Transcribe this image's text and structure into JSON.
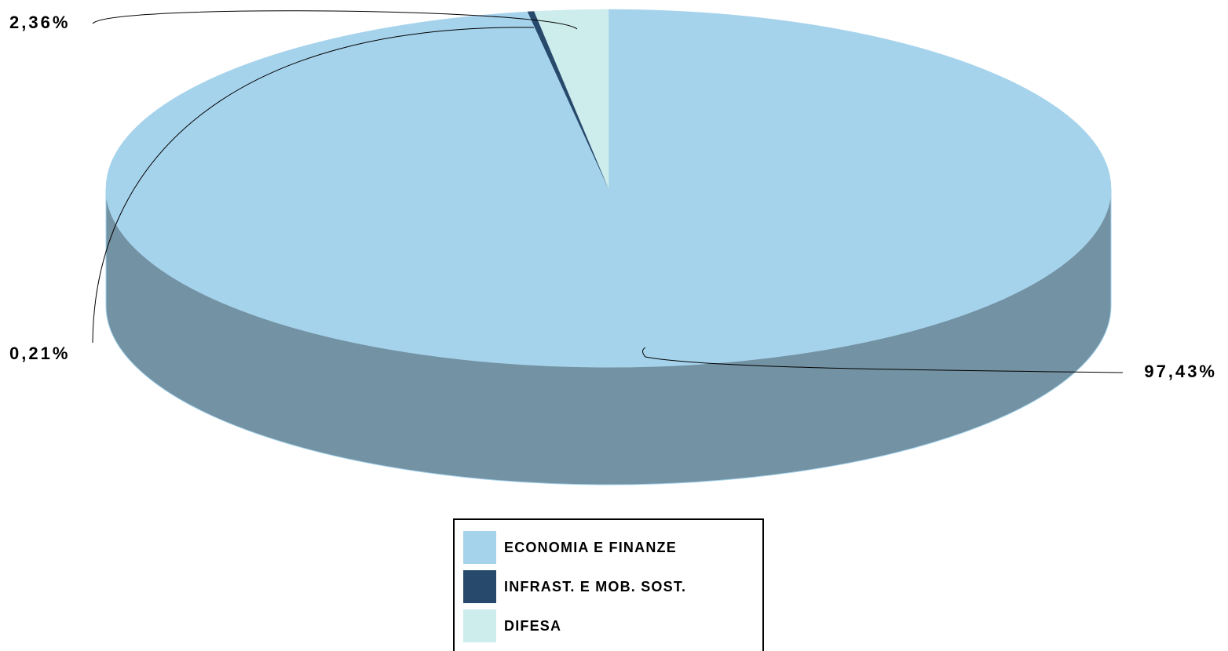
{
  "chart_data": {
    "type": "pie3d",
    "categories": [
      "ECONOMIA E FINANZE",
      "INFRAST. E MOB. SOST.",
      "DIFESA"
    ],
    "values": [
      97.43,
      0.21,
      2.36
    ],
    "value_labels": [
      "97,43%",
      "0,21%",
      "2,36%"
    ],
    "colors": [
      "#a6d3ec",
      "#27496b",
      "#cdecec"
    ],
    "legend": "bottom"
  }
}
